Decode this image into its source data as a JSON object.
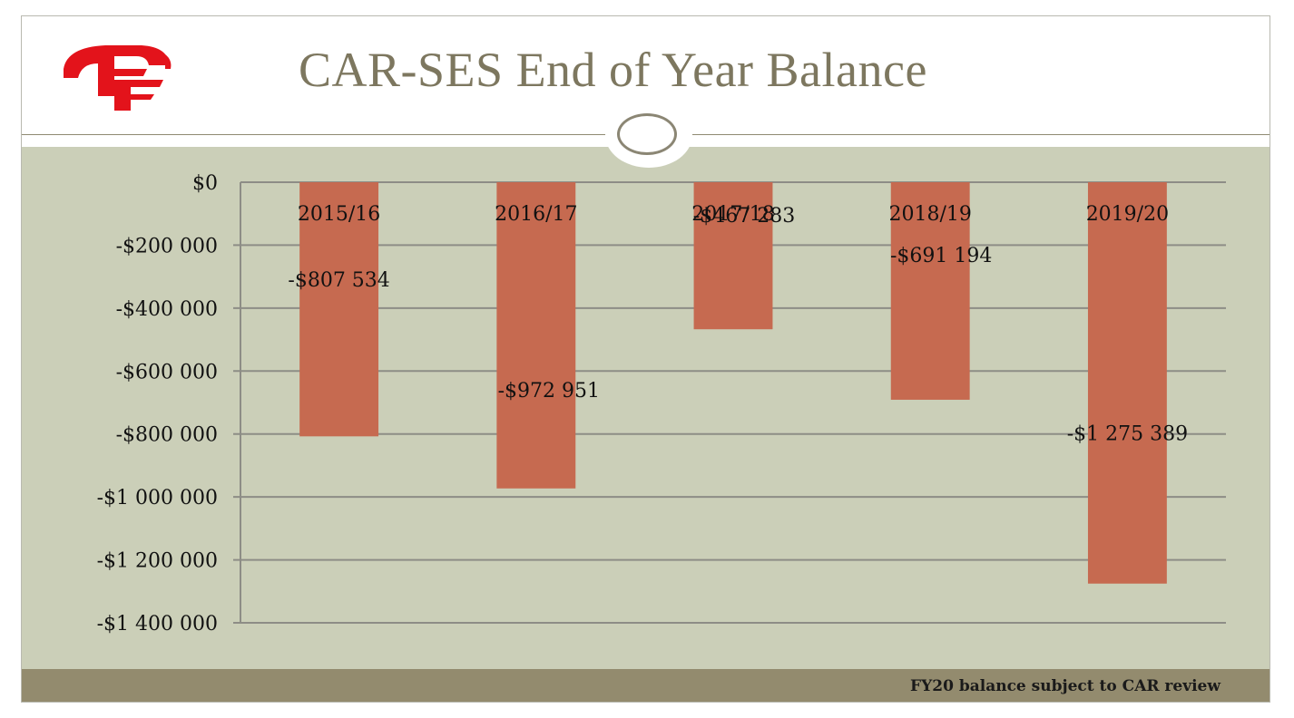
{
  "slide": {
    "title": "CAR-SES End of Year Balance",
    "footnote": "FY20 balance subject to CAR review",
    "logo_icon": "cf-logo-icon",
    "logo_text": "CF",
    "colors": {
      "title": "#7d775f",
      "plot_background": "#cbcfb8",
      "footer_band": "#938b6e",
      "bar": "#c66a50",
      "logo": "#e3131b"
    }
  },
  "chart_data": {
    "type": "bar",
    "title": "",
    "xlabel": "",
    "ylabel": "",
    "categories": [
      "2015/16",
      "2016/17",
      "2017/18",
      "2018/19",
      "2019/20"
    ],
    "values": [
      -807534,
      -972951,
      -467283,
      -691194,
      -1275389
    ],
    "data_labels": [
      "-$807 534",
      "-$972 951",
      "-$467 283",
      "-$691 194",
      "-$1 275 389"
    ],
    "ylim": [
      -1400000,
      0
    ],
    "yticks": [
      0,
      -200000,
      -400000,
      -600000,
      -800000,
      -1000000,
      -1200000,
      -1400000
    ],
    "ytick_labels": [
      "$0",
      "-$200 000",
      "-$400 000",
      "-$600 000",
      "-$800 000",
      "-$1 000 000",
      "-$1 200 000",
      "-$1 400 000"
    ],
    "grid": true,
    "legend": "none",
    "category_axis_position": "top"
  }
}
